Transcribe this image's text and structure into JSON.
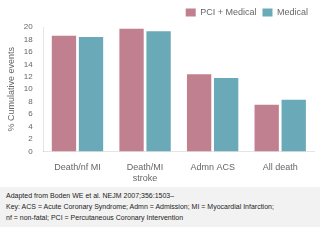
{
  "chart_data": {
    "type": "bar",
    "categories": [
      "Death/nf MI",
      "Death/MI\nstroke",
      "Admn ACS",
      "All death"
    ],
    "series": [
      {
        "name": "PCI + Medical",
        "color": "#c08090",
        "values": [
          18.6,
          19.7,
          12.4,
          7.5
        ]
      },
      {
        "name": "Medical",
        "color": "#6aaab8",
        "values": [
          18.4,
          19.3,
          11.8,
          8.3
        ]
      }
    ],
    "y_label": "% Cumulative events",
    "ylim": [
      0,
      20
    ],
    "yticks": [
      0,
      2,
      4,
      6,
      8,
      10,
      12,
      14,
      16,
      18,
      20
    ],
    "grid": false,
    "legend": "upper right",
    "annotations": [
      "Adapted from Boden WE et al. NEJM 2007;356:1503–",
      "Key: ACS = Acute Coronary Syndrome; Admn = Admission; MI = Myocardial Infarction;",
      "nf = non-fatal; PCI = Percutaneous Coronary Intervention"
    ]
  }
}
